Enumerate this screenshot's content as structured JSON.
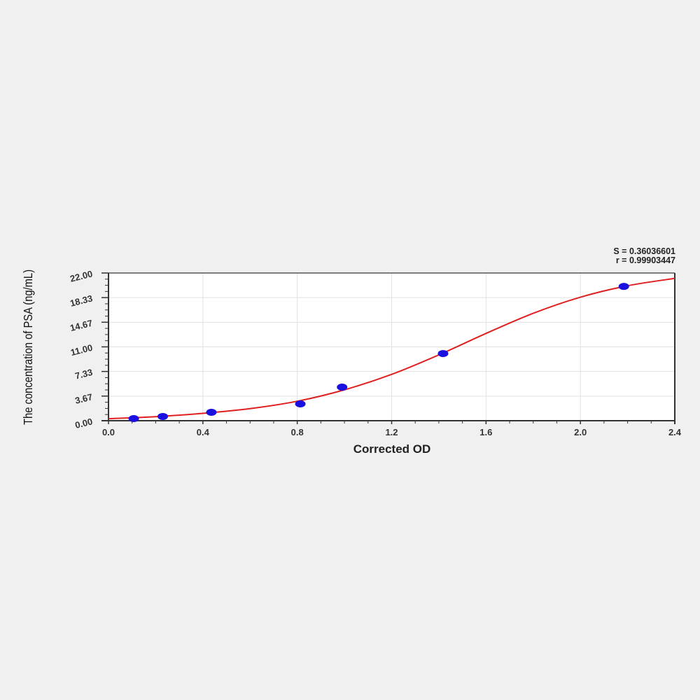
{
  "chart_data": {
    "type": "scatter",
    "title": "",
    "xlabel": "Corrected OD",
    "ylabel": "The concentration of PSA (ng/mL)",
    "xlim": [
      0,
      2.4
    ],
    "ylim": [
      0,
      22
    ],
    "x_ticks": [
      "0.0",
      "0.4",
      "0.8",
      "1.2",
      "1.6",
      "2.0",
      "2.4"
    ],
    "y_ticks": [
      "0.00",
      "3.67",
      "7.33",
      "11.00",
      "14.67",
      "18.33",
      "22.00"
    ],
    "grid": true,
    "annotations": [
      "S = 0.36036601",
      "r = 0.99903447"
    ],
    "series": [
      {
        "type": "scatter",
        "color": "#1a10e0",
        "x": [
          0.107,
          0.23,
          0.436,
          0.813,
          0.99,
          1.418,
          2.184
        ],
        "y": [
          0.31,
          0.63,
          1.25,
          2.5,
          5.0,
          10.0,
          20.0
        ]
      },
      {
        "type": "line",
        "color": "#e02020",
        "x": [
          0.0,
          0.2,
          0.4,
          0.6,
          0.8,
          1.0,
          1.2,
          1.4,
          1.6,
          1.8,
          2.0,
          2.2,
          2.4
        ],
        "y": [
          0.3,
          0.6,
          1.1,
          1.8,
          2.9,
          4.6,
          6.9,
          9.8,
          13.0,
          16.0,
          18.4,
          20.1,
          21.2
        ]
      }
    ]
  }
}
